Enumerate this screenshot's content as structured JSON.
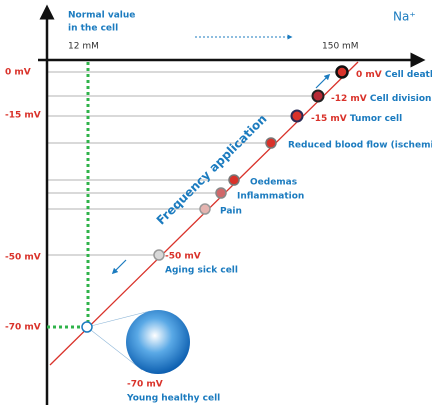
{
  "header": {
    "normal_value": [
      "Normal value",
      "in the cell"
    ],
    "ion": "Na⁺"
  },
  "concentration": {
    "low": "12 mM",
    "high": "150 mM"
  },
  "voltage_axis": [
    "0 mV",
    "-15 mV",
    "-50 mV",
    "-70 mV"
  ],
  "diagonal_label": "Frequency application",
  "markers": [
    {
      "mv": "0 mV",
      "label": "Cell death"
    },
    {
      "mv": "-12 mV",
      "label": "Cell division"
    },
    {
      "mv": "-15 mV",
      "label": "Tumor cell"
    },
    {
      "label": "Reduced blood flow (ischemia)"
    },
    {
      "label": "Oedemas"
    },
    {
      "label": "Inflammation"
    },
    {
      "label": "Pain"
    },
    {
      "mv": "-50 mV",
      "label": "Aging sick cell"
    },
    {
      "mv": "-70 mV",
      "label": "Young healthy cell"
    }
  ]
}
